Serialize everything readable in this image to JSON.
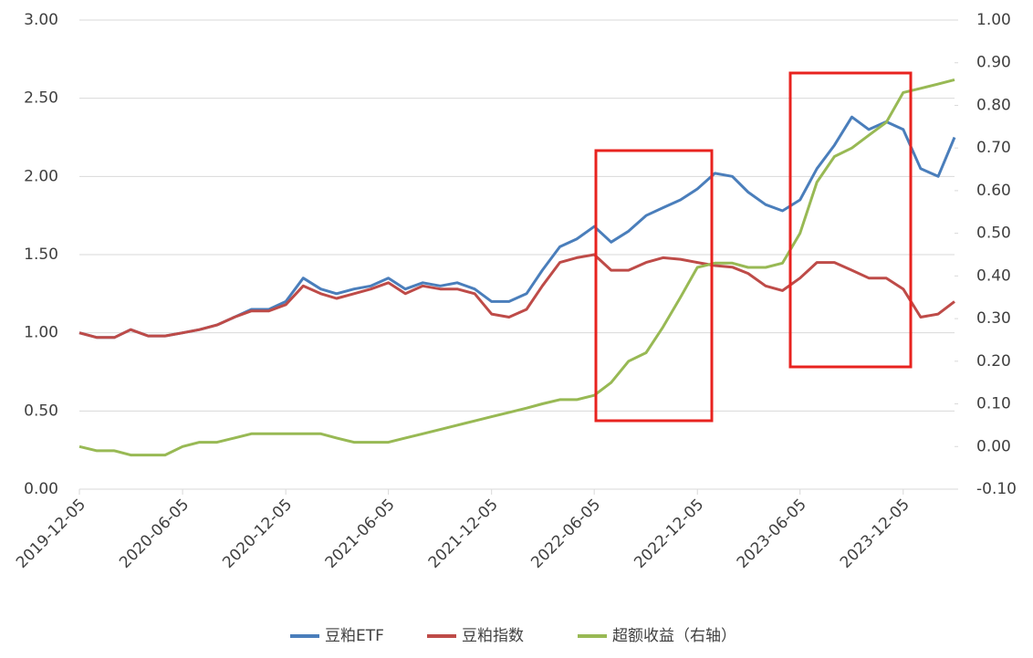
{
  "chart_data": {
    "type": "line",
    "x": [
      "2019-12-05",
      "2020-01-05",
      "2020-02-05",
      "2020-03-05",
      "2020-04-05",
      "2020-05-05",
      "2020-06-05",
      "2020-07-05",
      "2020-08-05",
      "2020-09-05",
      "2020-10-05",
      "2020-11-05",
      "2020-12-05",
      "2021-01-05",
      "2021-02-05",
      "2021-03-05",
      "2021-04-05",
      "2021-05-05",
      "2021-06-05",
      "2021-07-05",
      "2021-08-05",
      "2021-09-05",
      "2021-10-05",
      "2021-11-05",
      "2021-12-05",
      "2022-01-05",
      "2022-02-05",
      "2022-03-05",
      "2022-04-05",
      "2022-05-05",
      "2022-06-05",
      "2022-07-05",
      "2022-08-05",
      "2022-09-05",
      "2022-10-05",
      "2022-11-05",
      "2022-12-05",
      "2023-01-05",
      "2023-02-05",
      "2023-03-05",
      "2023-04-05",
      "2023-05-05",
      "2023-06-05",
      "2023-07-05",
      "2023-08-05",
      "2023-09-05",
      "2023-10-05",
      "2023-11-05",
      "2023-12-05",
      "2024-01-05",
      "2024-02-05",
      "2024-03-05"
    ],
    "xlim": [
      "2019-12-05",
      "2024-03-05"
    ],
    "xticks": [
      "2019-12-05",
      "2020-06-05",
      "2020-12-05",
      "2021-06-05",
      "2021-12-05",
      "2022-06-05",
      "2022-12-05",
      "2023-06-05",
      "2023-12-05"
    ],
    "ylim": [
      0,
      3
    ],
    "yticks": [
      {
        "value": 0,
        "label": "0.00"
      },
      {
        "value": 0.5,
        "label": "0.50"
      },
      {
        "value": 1,
        "label": "1.00"
      },
      {
        "value": 1.5,
        "label": "1.50"
      },
      {
        "value": 2,
        "label": "2.00"
      },
      {
        "value": 2.5,
        "label": "2.50"
      },
      {
        "value": 3,
        "label": "3.00"
      }
    ],
    "y2lim": [
      -0.1,
      1
    ],
    "y2ticks": [
      {
        "value": -0.1,
        "label": "-0.10"
      },
      {
        "value": 0,
        "label": "0.00"
      },
      {
        "value": 0.1,
        "label": "0.10"
      },
      {
        "value": 0.2,
        "label": "0.20"
      },
      {
        "value": 0.3,
        "label": "0.30"
      },
      {
        "value": 0.4,
        "label": "0.40"
      },
      {
        "value": 0.5,
        "label": "0.50"
      },
      {
        "value": 0.6,
        "label": "0.60"
      },
      {
        "value": 0.7,
        "label": "0.70"
      },
      {
        "value": 0.8,
        "label": "0.80"
      },
      {
        "value": 0.9,
        "label": "0.90"
      },
      {
        "value": 1,
        "label": "1.00"
      }
    ],
    "grid": true,
    "legend": "bottom",
    "series": [
      {
        "name": "豆粕ETF",
        "color": "#4a7ebb",
        "values": [
          1.0,
          0.97,
          0.97,
          1.02,
          0.98,
          0.98,
          1.0,
          1.02,
          1.05,
          1.1,
          1.15,
          1.15,
          1.2,
          1.35,
          1.28,
          1.25,
          1.28,
          1.3,
          1.35,
          1.28,
          1.32,
          1.3,
          1.32,
          1.28,
          1.2,
          1.2,
          1.25,
          1.4,
          1.55,
          1.6,
          1.68,
          1.58,
          1.65,
          1.75,
          1.8,
          1.85,
          1.92,
          2.02,
          2.0,
          1.9,
          1.82,
          1.78,
          1.85,
          2.05,
          2.2,
          2.38,
          2.3,
          2.35,
          2.3,
          2.05,
          2.0,
          2.25
        ]
      },
      {
        "name": "豆粕指数",
        "color": "#be4b48",
        "values": [
          1.0,
          0.97,
          0.97,
          1.02,
          0.98,
          0.98,
          1.0,
          1.02,
          1.05,
          1.1,
          1.14,
          1.14,
          1.18,
          1.3,
          1.25,
          1.22,
          1.25,
          1.28,
          1.32,
          1.25,
          1.3,
          1.28,
          1.28,
          1.25,
          1.12,
          1.1,
          1.15,
          1.3,
          1.45,
          1.48,
          1.5,
          1.4,
          1.4,
          1.45,
          1.48,
          1.47,
          1.45,
          1.43,
          1.42,
          1.38,
          1.3,
          1.27,
          1.35,
          1.45,
          1.45,
          1.4,
          1.35,
          1.35,
          1.28,
          1.1,
          1.12,
          1.2
        ]
      },
      {
        "name": "超额收益（右轴）",
        "color": "#98b954",
        "axis": "y2",
        "values": [
          0.0,
          -0.01,
          -0.01,
          -0.02,
          -0.02,
          -0.02,
          0.0,
          0.01,
          0.01,
          0.02,
          0.03,
          0.03,
          0.03,
          0.03,
          0.03,
          0.02,
          0.01,
          0.01,
          0.01,
          0.02,
          0.03,
          0.04,
          0.05,
          0.06,
          0.07,
          0.08,
          0.09,
          0.1,
          0.11,
          0.11,
          0.12,
          0.15,
          0.2,
          0.22,
          0.28,
          0.35,
          0.42,
          0.43,
          0.43,
          0.42,
          0.42,
          0.43,
          0.5,
          0.62,
          0.68,
          0.7,
          0.73,
          0.76,
          0.83,
          0.84,
          0.85,
          0.86
        ]
      }
    ]
  }
}
